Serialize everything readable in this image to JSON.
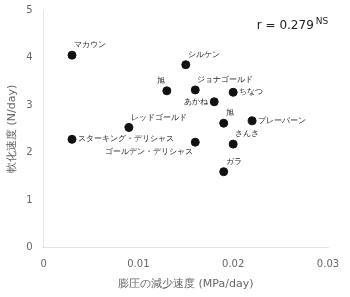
{
  "chart_data": {
    "type": "scatter",
    "x": [
      0.003,
      0.003,
      0.009,
      0.013,
      0.015,
      0.016,
      0.016,
      0.02,
      0.018,
      0.019,
      0.022,
      0.02,
      0.019
    ],
    "values": [
      4.05,
      2.28,
      2.53,
      3.3,
      3.85,
      3.32,
      2.22,
      3.27,
      3.07,
      2.62,
      2.67,
      2.18,
      1.6
    ],
    "point_labels": [
      "マカウン",
      "スターキング・デリシャス",
      "レッドゴールド",
      "旭",
      "シルケン",
      "ジョナゴールド",
      "ゴールデン・デリシャス",
      "ちなつ",
      "あかね",
      "旭",
      "ブレーバーン",
      "さんさ",
      "ガラ"
    ],
    "color": "#111111",
    "xlabel": "膨圧の減少速度 (MPa/day)",
    "ylabel": "軟化速度 (N/day)",
    "xlim": [
      0,
      0.03
    ],
    "ylim": [
      0,
      5
    ],
    "xticks": [
      0,
      0.01,
      0.02,
      0.03
    ],
    "yticks": [
      0,
      1,
      2,
      3,
      4,
      5
    ],
    "annotations": [
      "r = 0.279",
      "NS"
    ],
    "grid": false
  }
}
